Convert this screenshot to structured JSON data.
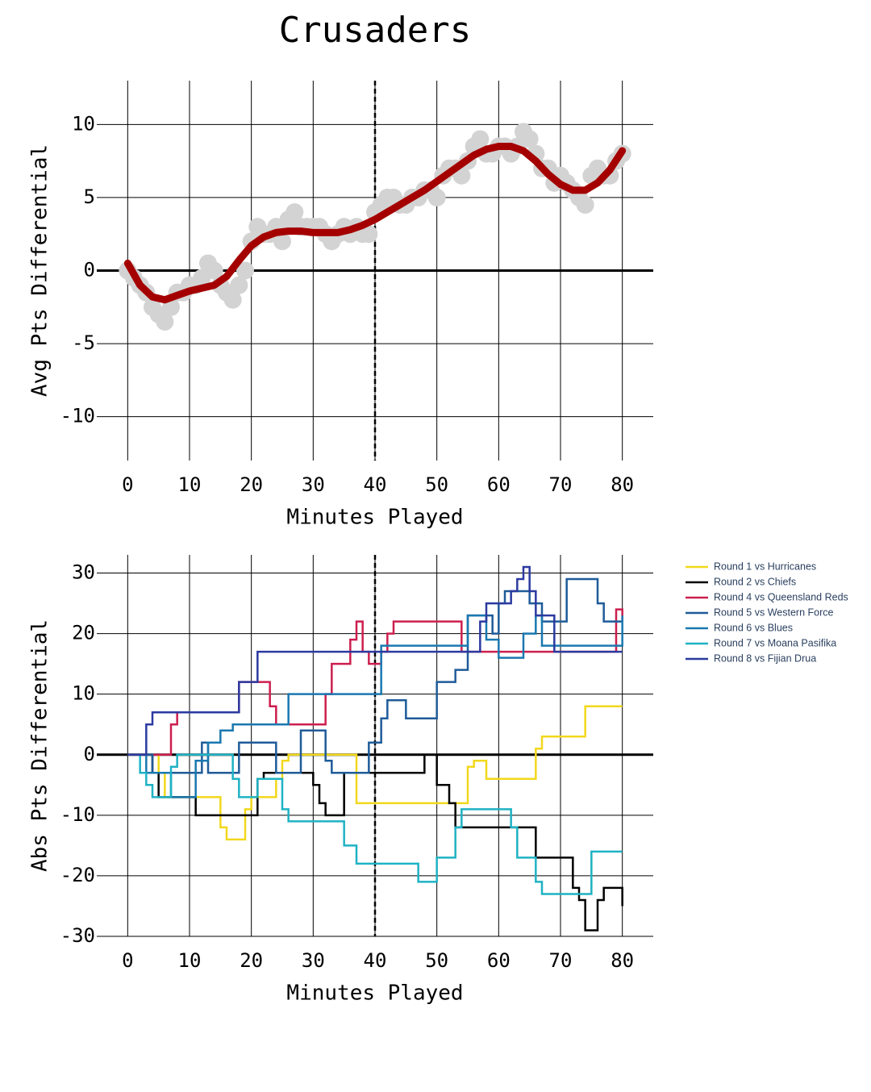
{
  "chart_data": [
    {
      "type": "combo",
      "title": "Crusaders",
      "xlabel": "Minutes Played",
      "ylabel": "Avg Pts Differential",
      "xlim": [
        -5,
        85
      ],
      "xticks": [
        0,
        10,
        20,
        30,
        40,
        50,
        60,
        70,
        80
      ],
      "ylim": [
        -13,
        13
      ],
      "yticks": [
        -10,
        -5,
        0,
        5,
        10
      ],
      "grid": true,
      "zeroline": true,
      "vline": 40,
      "series": [
        {
          "type": "scatter",
          "color": "#d3d3d3",
          "x": [
            0,
            1,
            2,
            3,
            4,
            5,
            6,
            7,
            8,
            9,
            10,
            11,
            12,
            13,
            14,
            15,
            16,
            17,
            18,
            19,
            20,
            21,
            22,
            23,
            24,
            25,
            26,
            27,
            28,
            29,
            30,
            31,
            32,
            33,
            34,
            35,
            36,
            37,
            38,
            39,
            40,
            41,
            42,
            43,
            44,
            45,
            46,
            47,
            48,
            49,
            50,
            51,
            52,
            53,
            54,
            55,
            56,
            57,
            58,
            59,
            60,
            61,
            62,
            63,
            64,
            65,
            66,
            67,
            68,
            69,
            70,
            71,
            72,
            73,
            74,
            75,
            76,
            77,
            78,
            79,
            80
          ],
          "values": [
            0,
            -0.5,
            -1,
            -1.5,
            -2.5,
            -3,
            -3.5,
            -2.5,
            -1.5,
            -1.5,
            -1,
            -1,
            -0.5,
            0.5,
            0,
            -1,
            -1.5,
            -2,
            -1,
            0,
            2,
            3,
            2.5,
            2.5,
            3,
            2,
            3.5,
            4,
            3,
            3,
            3,
            3,
            2.5,
            2,
            2.5,
            3,
            2.5,
            3,
            2.5,
            2.5,
            4,
            4.5,
            5,
            5,
            4.5,
            4.5,
            5,
            5,
            5.5,
            5.5,
            5,
            6.5,
            7,
            7,
            6.5,
            7.5,
            8.5,
            9,
            8,
            8,
            8.5,
            8.5,
            8,
            8.5,
            9.5,
            9,
            8,
            7,
            7,
            6,
            6.5,
            6,
            5.5,
            5,
            4.5,
            6.5,
            7,
            6.5,
            6.5,
            7.5,
            8
          ]
        },
        {
          "type": "line",
          "color": "#a50000",
          "x": [
            0,
            2,
            4,
            6,
            8,
            10,
            12,
            14,
            16,
            18,
            20,
            22,
            24,
            26,
            28,
            30,
            32,
            34,
            36,
            38,
            40,
            42,
            44,
            46,
            48,
            50,
            52,
            54,
            56,
            58,
            60,
            62,
            64,
            66,
            68,
            70,
            72,
            74,
            76,
            78,
            80
          ],
          "values": [
            0.5,
            -1,
            -1.8,
            -2,
            -1.7,
            -1.4,
            -1.2,
            -1,
            -0.4,
            0.7,
            1.7,
            2.3,
            2.6,
            2.7,
            2.7,
            2.6,
            2.6,
            2.6,
            2.8,
            3.1,
            3.5,
            4,
            4.5,
            5,
            5.5,
            6.1,
            6.7,
            7.3,
            7.9,
            8.3,
            8.5,
            8.5,
            8.2,
            7.5,
            6.6,
            5.9,
            5.5,
            5.5,
            6,
            6.9,
            8.2
          ]
        }
      ]
    },
    {
      "type": "step",
      "xlabel": "Minutes Played",
      "ylabel": "Abs Pts Differential",
      "xlim": [
        -5,
        85
      ],
      "xticks": [
        0,
        10,
        20,
        30,
        40,
        50,
        60,
        70,
        80
      ],
      "ylim": [
        -30,
        33
      ],
      "yticks": [
        -30,
        -20,
        -10,
        0,
        10,
        20,
        30
      ],
      "grid": true,
      "zeroline": true,
      "vline": 40,
      "legend": "right",
      "series": [
        {
          "name": "Round 1 vs Hurricanes",
          "color": "#f2d81c",
          "x": [
            0,
            5,
            6,
            11,
            15,
            16,
            19,
            20,
            24,
            25,
            26,
            33,
            37,
            53,
            55,
            56,
            58,
            66,
            67,
            74,
            80
          ],
          "values": [
            0,
            -3,
            -7,
            -7,
            -12,
            -14,
            -9,
            -7,
            -4,
            -1,
            0,
            0,
            -8,
            -8,
            -2,
            -1,
            -4,
            1,
            3,
            8,
            8
          ]
        },
        {
          "name": "Round 2 vs Chiefs",
          "color": "#000000",
          "x": [
            0,
            4,
            5,
            11,
            21,
            22,
            30,
            31,
            32,
            35,
            40,
            48,
            50,
            52,
            53,
            66,
            72,
            73,
            74,
            76,
            77,
            80
          ],
          "values": [
            0,
            -3,
            -7,
            -10,
            -4,
            -3,
            -5,
            -8,
            -10,
            -3,
            -3,
            0,
            -5,
            -8,
            -12,
            -17,
            -22,
            -24,
            -29,
            -24,
            -22,
            -25
          ]
        },
        {
          "name": "Round 4 vs Queensland Reds",
          "color": "#cc1f4e",
          "x": [
            0,
            5,
            7,
            8,
            18,
            23,
            24,
            32,
            33,
            36,
            37,
            38,
            39,
            41,
            42,
            43,
            54,
            79,
            80
          ],
          "values": [
            0,
            0,
            5,
            7,
            12,
            8,
            5,
            10,
            15,
            19,
            22,
            17,
            15,
            17,
            20,
            22,
            17,
            24,
            22
          ]
        },
        {
          "name": "Round 5 vs Western Force",
          "color": "#1f5b99",
          "x": [
            0,
            4,
            12,
            13,
            18,
            24,
            28,
            32,
            33,
            39,
            41,
            42,
            45,
            50,
            53,
            55,
            59,
            60,
            61,
            65,
            67,
            71,
            76,
            77,
            80
          ],
          "values": [
            0,
            -3,
            2,
            -3,
            2,
            -3,
            4,
            -1,
            -3,
            2,
            6,
            9,
            6,
            12,
            14,
            23,
            20,
            25,
            27,
            25,
            22,
            29,
            25,
            22,
            22
          ]
        },
        {
          "name": "Round 6 vs Blues",
          "color": "#1a78b0",
          "x": [
            0,
            3,
            7,
            11,
            13,
            15,
            17,
            26,
            41,
            55,
            58,
            60,
            64,
            66,
            67,
            80
          ],
          "values": [
            0,
            -3,
            -7,
            -1,
            2,
            4,
            5,
            10,
            18,
            23,
            19,
            16,
            20,
            23,
            18,
            23
          ]
        },
        {
          "name": "Round 7 vs Moana Pasifika",
          "color": "#1fb2c4",
          "x": [
            0,
            2,
            3,
            4,
            7,
            8,
            17,
            18,
            21,
            25,
            26,
            35,
            37,
            47,
            50,
            53,
            54,
            62,
            63,
            66,
            67,
            75,
            80
          ],
          "values": [
            0,
            -3,
            -5,
            -7,
            -2,
            0,
            -4,
            -7,
            -4,
            -9,
            -11,
            -15,
            -18,
            -21,
            -17,
            -12,
            -9,
            -12,
            -17,
            -21,
            -23,
            -16,
            -16
          ]
        },
        {
          "name": "Round 8 vs Fijian Drua",
          "color": "#2b3aa0",
          "x": [
            0,
            3,
            4,
            18,
            21,
            57,
            58,
            62,
            63,
            64,
            65,
            66,
            69,
            80
          ],
          "values": [
            0,
            5,
            7,
            12,
            17,
            22,
            25,
            27,
            29,
            31,
            27,
            23,
            17,
            17
          ]
        }
      ]
    }
  ]
}
